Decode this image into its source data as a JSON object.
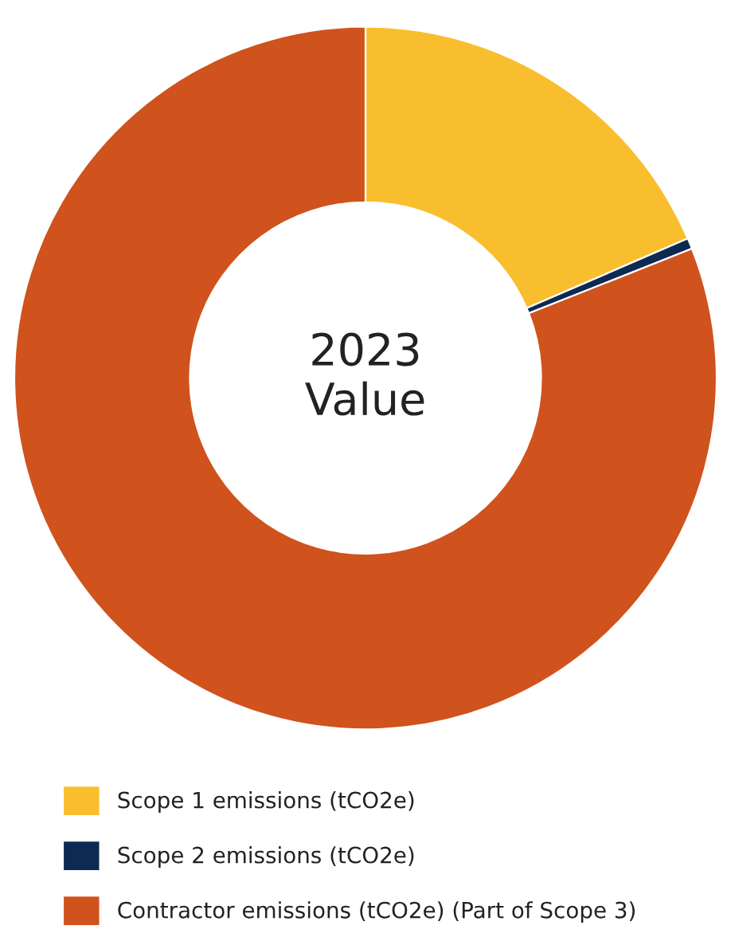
{
  "chart_data": {
    "type": "donut",
    "title": "2023\nValue",
    "categories": [
      "Scope 1 emissions (tCO2e)",
      "Scope 2 emissions (tCO2e)",
      "Contractor emissions (tCO2e) (Part of Scope 3)"
    ],
    "values": [
      18.5,
      0.5,
      81.0
    ],
    "colors": [
      "#f9be2d",
      "#0d2a52",
      "#d0521d"
    ],
    "legend": "bottom left"
  }
}
